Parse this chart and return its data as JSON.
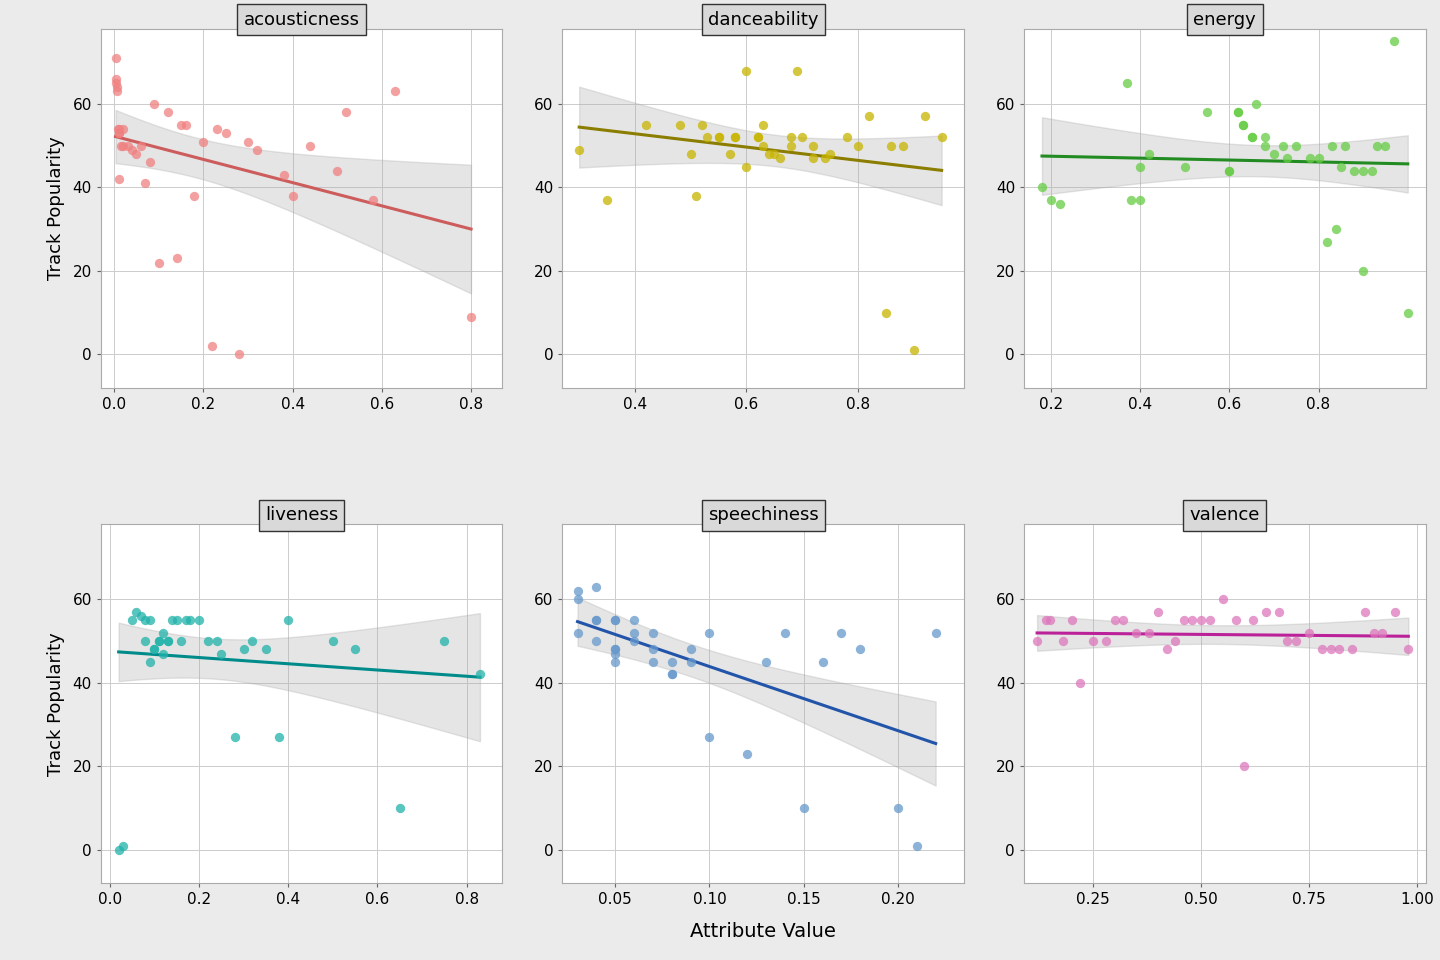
{
  "panels": [
    {
      "title": "acousticness",
      "color": "#F08080",
      "line_color": "#CD5C5C",
      "xlim": [
        -0.03,
        0.87
      ],
      "xticks": [
        0.0,
        0.2,
        0.4,
        0.6,
        0.8
      ],
      "x": [
        0.003,
        0.004,
        0.005,
        0.006,
        0.007,
        0.008,
        0.01,
        0.01,
        0.01,
        0.01,
        0.015,
        0.02,
        0.02,
        0.03,
        0.04,
        0.05,
        0.06,
        0.07,
        0.08,
        0.09,
        0.1,
        0.12,
        0.14,
        0.15,
        0.16,
        0.18,
        0.2,
        0.22,
        0.23,
        0.25,
        0.28,
        0.3,
        0.32,
        0.38,
        0.4,
        0.44,
        0.5,
        0.52,
        0.58,
        0.63,
        0.8
      ],
      "y": [
        71,
        66,
        65,
        64,
        63,
        54,
        54,
        53,
        53,
        42,
        50,
        50,
        54,
        50,
        49,
        48,
        50,
        41,
        46,
        60,
        22,
        58,
        23,
        55,
        55,
        38,
        51,
        2,
        54,
        53,
        0,
        51,
        49,
        43,
        38,
        50,
        44,
        58,
        37,
        63,
        9
      ]
    },
    {
      "title": "danceability",
      "color": "#C8B400",
      "line_color": "#8B7D00",
      "xlim": [
        0.27,
        0.99
      ],
      "xticks": [
        0.4,
        0.6,
        0.8
      ],
      "x": [
        0.3,
        0.35,
        0.42,
        0.48,
        0.5,
        0.51,
        0.52,
        0.53,
        0.55,
        0.55,
        0.57,
        0.58,
        0.58,
        0.6,
        0.6,
        0.62,
        0.62,
        0.63,
        0.63,
        0.64,
        0.65,
        0.66,
        0.68,
        0.68,
        0.69,
        0.7,
        0.72,
        0.72,
        0.74,
        0.75,
        0.78,
        0.8,
        0.82,
        0.85,
        0.86,
        0.88,
        0.9,
        0.92,
        0.95
      ],
      "y": [
        49,
        37,
        55,
        55,
        48,
        38,
        55,
        52,
        52,
        52,
        48,
        52,
        52,
        68,
        45,
        52,
        52,
        55,
        50,
        48,
        48,
        47,
        52,
        50,
        68,
        52,
        50,
        47,
        47,
        48,
        52,
        50,
        57,
        10,
        50,
        50,
        1,
        57,
        52
      ]
    },
    {
      "title": "energy",
      "color": "#66CC44",
      "line_color": "#228B22",
      "xlim": [
        0.14,
        1.04
      ],
      "xticks": [
        0.2,
        0.4,
        0.6,
        0.8
      ],
      "x": [
        0.18,
        0.2,
        0.22,
        0.37,
        0.38,
        0.4,
        0.4,
        0.42,
        0.5,
        0.55,
        0.6,
        0.6,
        0.62,
        0.62,
        0.63,
        0.63,
        0.65,
        0.65,
        0.66,
        0.68,
        0.68,
        0.7,
        0.72,
        0.73,
        0.75,
        0.78,
        0.8,
        0.82,
        0.83,
        0.84,
        0.85,
        0.86,
        0.88,
        0.9,
        0.9,
        0.92,
        0.93,
        0.95,
        0.97,
        1.0
      ],
      "y": [
        40,
        37,
        36,
        65,
        37,
        37,
        45,
        48,
        45,
        58,
        44,
        44,
        58,
        58,
        55,
        55,
        52,
        52,
        60,
        52,
        50,
        48,
        50,
        47,
        50,
        47,
        47,
        27,
        50,
        30,
        45,
        50,
        44,
        44,
        20,
        44,
        50,
        50,
        75,
        10
      ]
    },
    {
      "title": "liveness",
      "color": "#20B2AA",
      "line_color": "#008B8B",
      "xlim": [
        -0.02,
        0.88
      ],
      "xticks": [
        0.0,
        0.2,
        0.4,
        0.6,
        0.8
      ],
      "x": [
        0.02,
        0.03,
        0.05,
        0.06,
        0.07,
        0.08,
        0.08,
        0.09,
        0.09,
        0.1,
        0.1,
        0.11,
        0.11,
        0.12,
        0.12,
        0.13,
        0.13,
        0.14,
        0.15,
        0.16,
        0.17,
        0.18,
        0.2,
        0.22,
        0.24,
        0.25,
        0.28,
        0.3,
        0.32,
        0.35,
        0.38,
        0.4,
        0.5,
        0.55,
        0.65,
        0.75,
        0.83
      ],
      "y": [
        0,
        1,
        55,
        57,
        56,
        55,
        50,
        45,
        55,
        48,
        48,
        50,
        50,
        47,
        52,
        50,
        50,
        55,
        55,
        50,
        55,
        55,
        55,
        50,
        50,
        47,
        27,
        48,
        50,
        48,
        27,
        55,
        50,
        48,
        10,
        50,
        42
      ]
    },
    {
      "title": "speechiness",
      "color": "#6699CC",
      "line_color": "#2255AA",
      "xlim": [
        0.022,
        0.235
      ],
      "xticks": [
        0.05,
        0.1,
        0.15,
        0.2
      ],
      "x": [
        0.03,
        0.03,
        0.03,
        0.04,
        0.04,
        0.04,
        0.04,
        0.05,
        0.05,
        0.05,
        0.05,
        0.05,
        0.05,
        0.06,
        0.06,
        0.06,
        0.07,
        0.07,
        0.07,
        0.08,
        0.08,
        0.08,
        0.09,
        0.09,
        0.1,
        0.1,
        0.12,
        0.13,
        0.14,
        0.15,
        0.16,
        0.17,
        0.18,
        0.2,
        0.21,
        0.22
      ],
      "y": [
        62,
        60,
        52,
        63,
        55,
        55,
        50,
        55,
        55,
        48,
        48,
        47,
        45,
        55,
        52,
        50,
        52,
        48,
        45,
        45,
        42,
        42,
        48,
        45,
        52,
        27,
        23,
        45,
        52,
        10,
        45,
        52,
        48,
        10,
        1,
        52
      ]
    },
    {
      "title": "valence",
      "color": "#DD77BB",
      "line_color": "#BB2299",
      "xlim": [
        0.09,
        1.02
      ],
      "xticks": [
        0.25,
        0.5,
        0.75,
        1.0
      ],
      "x": [
        0.12,
        0.14,
        0.15,
        0.18,
        0.2,
        0.22,
        0.25,
        0.28,
        0.3,
        0.32,
        0.35,
        0.38,
        0.4,
        0.42,
        0.44,
        0.46,
        0.48,
        0.5,
        0.52,
        0.55,
        0.58,
        0.6,
        0.62,
        0.65,
        0.68,
        0.7,
        0.72,
        0.75,
        0.78,
        0.8,
        0.82,
        0.85,
        0.88,
        0.9,
        0.92,
        0.95,
        0.98
      ],
      "y": [
        50,
        55,
        55,
        50,
        55,
        40,
        50,
        50,
        55,
        55,
        52,
        52,
        57,
        48,
        50,
        55,
        55,
        55,
        55,
        60,
        55,
        20,
        55,
        57,
        57,
        50,
        50,
        52,
        48,
        48,
        48,
        48,
        57,
        52,
        52,
        57,
        48
      ]
    }
  ],
  "ylim": [
    -8,
    78
  ],
  "yticks": [
    0,
    20,
    40,
    60
  ],
  "ylabel": "Track Popularity",
  "xlabel": "Attribute Value",
  "outer_bg": "#EBEBEB",
  "plot_bg": "#FFFFFF",
  "grid_color": "#CCCCCC",
  "strip_bg": "#D9D9D9",
  "strip_border": "#333333",
  "strip_fontsize": 13,
  "axis_fontsize": 13,
  "tick_fontsize": 11,
  "dot_size": 45,
  "dot_alpha": 0.75,
  "line_width": 2.2,
  "ci_alpha": 0.3,
  "ci_color": "#AAAAAA"
}
